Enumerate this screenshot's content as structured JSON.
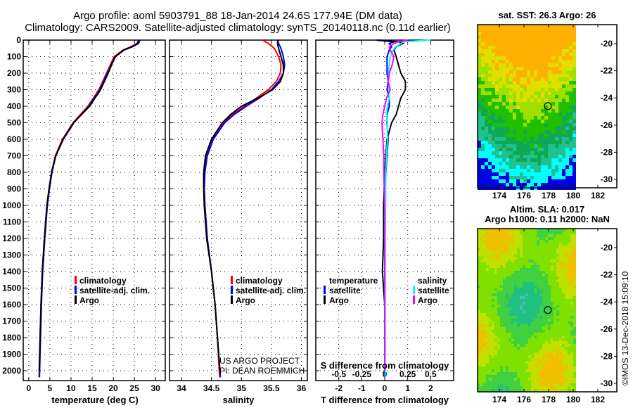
{
  "title": {
    "line1": "Argo profile: aoml 5903791_88 18-Jan-2014 24.6S 177.94E (DM data)",
    "line2": "Climatology: CARS2009. Satellite-adjusted climatology: synTS_20140118.nc (0.11d earlier)"
  },
  "colors": {
    "climatology": "#ff0000",
    "satellite": "#0000ff",
    "argo": "#000000",
    "sal_satellite": "#00ffff",
    "sal_argo": "#ff00ff"
  },
  "depth_ticks": [
    "0",
    "100",
    "200",
    "300",
    "400",
    "500",
    "600",
    "700",
    "800",
    "900",
    "1000",
    "1100",
    "1200",
    "1300",
    "1400",
    "1500",
    "1600",
    "1700",
    "1800",
    "1900",
    "2000"
  ],
  "chart_data": [
    {
      "type": "line",
      "xlabel": "temperature (deg C)",
      "ylabel": "depth",
      "xlim": [
        -1.3,
        32.3
      ],
      "ylim": [
        2060,
        0
      ],
      "xticks": [
        "0",
        "5",
        "10",
        "15",
        "20",
        "25",
        "30"
      ],
      "legend": [
        "climatology",
        "satellite-adj. clim.",
        "Argo"
      ],
      "depth": [
        0,
        20,
        40,
        60,
        100,
        150,
        200,
        300,
        400,
        500,
        600,
        700,
        800,
        900,
        1000,
        1200,
        1400,
        1600,
        1800,
        2000,
        2040
      ],
      "series": [
        {
          "name": "climatology",
          "values": [
            26.0,
            25.6,
            24.2,
            22.3,
            20.2,
            19.3,
            18.4,
            16.6,
            14.0,
            10.5,
            8.0,
            6.3,
            5.4,
            4.8,
            4.3,
            3.7,
            3.2,
            2.9,
            2.7,
            2.5,
            2.45
          ]
        },
        {
          "name": "satellite-adj. clim.",
          "values": [
            26.3,
            26.0,
            24.6,
            22.6,
            20.4,
            19.5,
            18.6,
            16.8,
            14.2,
            10.7,
            8.2,
            6.4,
            5.5,
            4.9,
            4.4,
            3.8,
            3.3,
            3.0,
            2.8,
            2.6,
            2.55
          ]
        },
        {
          "name": "Argo",
          "values": [
            26.0,
            25.8,
            24.4,
            22.5,
            20.5,
            19.6,
            18.8,
            17.0,
            14.4,
            10.6,
            8.1,
            6.4,
            5.4,
            4.8,
            4.3,
            3.7,
            3.2,
            2.9,
            2.7,
            2.5,
            null
          ]
        }
      ]
    },
    {
      "type": "line",
      "xlabel": "salinity",
      "xlim": [
        33.8,
        36.1
      ],
      "ylim": [
        2060,
        0
      ],
      "xticks": [
        "34",
        "34.5",
        "35",
        "35.5",
        "36"
      ],
      "legend": [
        "climatology",
        "satellite-adj. clim.",
        "Argo"
      ],
      "annotation": [
        "US ARGO PROJECT",
        "PI: DEAN ROEMMICH"
      ],
      "depth": [
        0,
        20,
        50,
        100,
        150,
        200,
        250,
        300,
        350,
        400,
        450,
        500,
        600,
        700,
        800,
        900,
        1000,
        1200,
        1400,
        1600,
        1800,
        2000,
        2040
      ],
      "series": [
        {
          "name": "climatology",
          "values": [
            35.35,
            35.45,
            35.55,
            35.62,
            35.66,
            35.65,
            35.58,
            35.45,
            35.25,
            35.05,
            34.85,
            34.7,
            34.52,
            34.42,
            34.39,
            34.38,
            34.39,
            34.43,
            34.5,
            34.56,
            34.6,
            34.63,
            34.64
          ]
        },
        {
          "name": "satellite-adj. clim.",
          "values": [
            35.6,
            35.62,
            35.66,
            35.7,
            35.72,
            35.7,
            35.62,
            35.5,
            35.3,
            35.08,
            34.88,
            34.72,
            34.53,
            34.43,
            34.39,
            34.38,
            34.39,
            34.43,
            34.5,
            34.56,
            34.6,
            34.64,
            34.65
          ]
        },
        {
          "name": "Argo",
          "values": [
            35.62,
            35.6,
            35.62,
            35.66,
            35.7,
            35.7,
            35.65,
            35.52,
            35.28,
            35.0,
            34.82,
            34.68,
            34.5,
            34.4,
            34.37,
            34.37,
            34.38,
            34.42,
            34.5,
            34.56,
            34.6,
            34.64,
            null
          ]
        }
      ]
    },
    {
      "type": "line",
      "xlabel": "T difference from climatology",
      "xlabel2": "S difference from climatology",
      "xlim": [
        -3,
        3
      ],
      "ylim": [
        2060,
        0
      ],
      "xticks": [
        "-2",
        "-1",
        "0",
        "1",
        "2"
      ],
      "xticks2": [
        "-0.5",
        "-0.25",
        "0",
        "0.25",
        "0.5"
      ],
      "legend_t": {
        "title": "temperature",
        "items": [
          "satellite",
          "Argo"
        ]
      },
      "legend_s": {
        "title": "salinity",
        "items": [
          "satellite",
          "Argo"
        ]
      },
      "depth": [
        0,
        10,
        20,
        40,
        60,
        100,
        150,
        200,
        250,
        300,
        350,
        400,
        450,
        500,
        600,
        700,
        800,
        1000,
        1200,
        1400,
        1600,
        1800,
        2000,
        2040
      ],
      "series": [
        {
          "name": "T satellite",
          "values": [
            -0.4,
            0.4,
            0.2,
            0.3,
            0.2,
            0.1,
            0.1,
            0.1,
            0.15,
            0.1,
            0.2,
            0.2,
            0.1,
            0.1,
            0.15,
            0.1,
            0.05,
            0.0,
            0.0,
            0.0,
            0.0,
            0.0,
            0.0,
            0.0
          ]
        },
        {
          "name": "T Argo",
          "values": [
            -0.3,
            0.6,
            0.8,
            0.5,
            0.4,
            0.5,
            0.6,
            0.7,
            0.9,
            0.9,
            0.7,
            0.6,
            0.5,
            0.3,
            0.1,
            0.05,
            0.0,
            -0.05,
            -0.05,
            -0.1,
            -0.0,
            0.0,
            0.0,
            null
          ]
        },
        {
          "name": "S satellite",
          "values": [
            0.5,
            0.2,
            0.18,
            0.12,
            0.09,
            0.06,
            0.05,
            0.04,
            0.04,
            0.05,
            0.05,
            0.03,
            0.02,
            0.03,
            0.03,
            0.02,
            0.01,
            0.01,
            0.005,
            0.005,
            0.005,
            0.005,
            0.005,
            0.005
          ]
        },
        {
          "name": "S Argo",
          "values": [
            0.25,
            0.15,
            0.1,
            0.05,
            0.06,
            0.1,
            0.08,
            0.05,
            0.04,
            0.06,
            0.02,
            0.0,
            -0.02,
            -0.03,
            -0.02,
            -0.01,
            -0.01,
            0.0,
            0.0,
            0.0,
            0.0,
            0.0,
            0.0,
            null
          ]
        }
      ]
    }
  ],
  "maps": [
    {
      "title": "sat. SST: 26.3 Argo: 26",
      "lon_ticks": [
        "174",
        "176",
        "178",
        "180",
        "182"
      ],
      "lat_ticks": [
        "-20",
        "-22",
        "-24",
        "-26",
        "-28",
        "-30"
      ]
    },
    {
      "title": "Altim. SLA: 0.017",
      "subtitle": "Argo h1000: 0.11 h2000: NaN",
      "lon_ticks": [
        "174",
        "176",
        "178",
        "180",
        "182"
      ],
      "lat_ticks": [
        "-20",
        "-22",
        "-24",
        "-26",
        "-28",
        "-30"
      ]
    }
  ],
  "credit": "©IMOS 13-Dec-2018 15:09:10"
}
